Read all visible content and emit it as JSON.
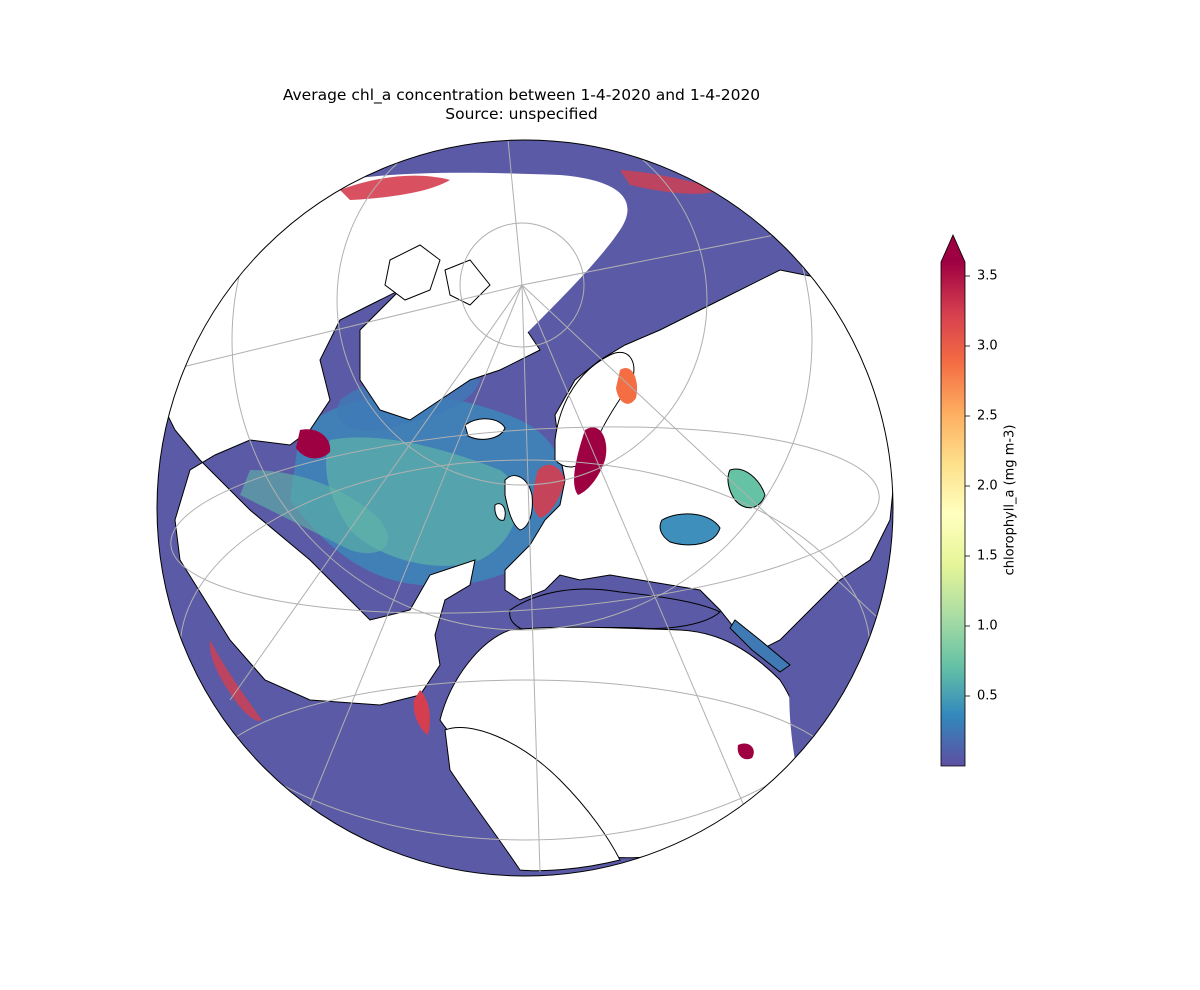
{
  "title": {
    "line1": "Average chl_a concentration between 1-4-2020 and 1-4-2020",
    "line2": "Source: unspecified"
  },
  "colorbar": {
    "label": "chlorophyll_a (mg m-3)",
    "ticks": [
      "0.5",
      "1.0",
      "1.5",
      "2.0",
      "2.5",
      "3.0",
      "3.5"
    ],
    "tick_values": [
      0.5,
      1.0,
      1.5,
      2.0,
      2.5,
      3.0,
      3.5
    ],
    "range": [
      0.0,
      3.6
    ],
    "extend": "max",
    "colormap": [
      "#5e4fa2",
      "#3288bd",
      "#66c2a5",
      "#abdda4",
      "#e6f598",
      "#ffffbf",
      "#fee08b",
      "#fdae61",
      "#f46d43",
      "#d53e4f",
      "#9e0142"
    ]
  },
  "map": {
    "projection": "orthographic",
    "center": "North Atlantic",
    "gridlines": true,
    "land_color": "#ffffff",
    "ocean_base_color": "#5b5aa6",
    "coastline_color": "#000000"
  }
}
